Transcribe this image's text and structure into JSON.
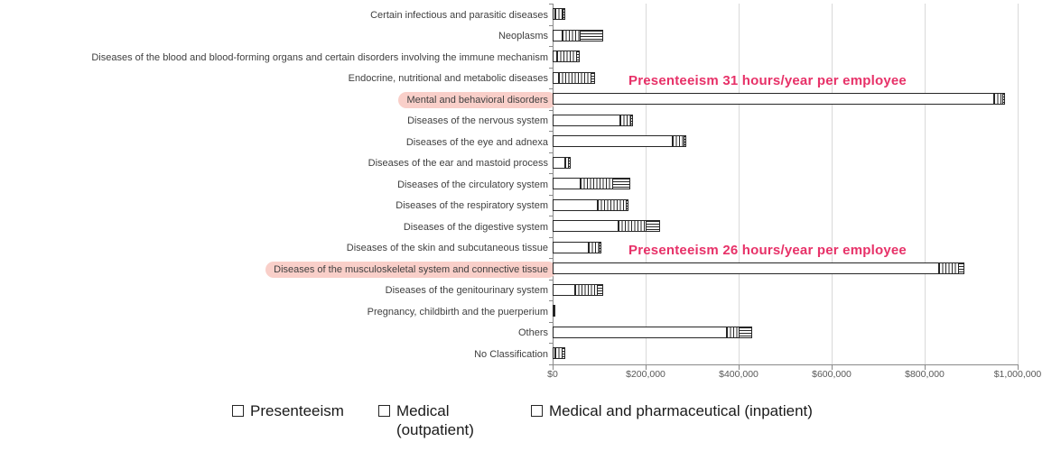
{
  "chart_data": {
    "type": "bar",
    "orientation": "horizontal",
    "stacked": true,
    "title": "",
    "xlabel": "",
    "ylabel": "",
    "x_ticks": [
      "$0",
      "$200,000",
      "$400,000",
      "$600,000",
      "$800,000",
      "$1,000,000"
    ],
    "xlim": [
      0,
      1000000
    ],
    "grid": "vertical",
    "legend_position": "bottom",
    "categories": [
      "Certain infectious and parasitic diseases",
      "Neoplasms",
      "Diseases of the blood and blood-forming organs and certain disorders involving the immune mechanism",
      "Endocrine, nutritional and metabolic diseases",
      "Mental and behavioral disorders",
      "Diseases of the nervous system",
      "Diseases of the eye and adnexa",
      "Diseases of the ear and mastoid process",
      "Diseases of the circulatory system",
      "Diseases of the respiratory system",
      "Diseases of the digestive system",
      "Diseases of the skin and subcutaneous tissue",
      "Diseases of the musculoskeletal system and connective tissue",
      "Diseases of the genitourinary system",
      "Pregnancy, childbirth and the puerperium",
      "Others",
      "No Classification"
    ],
    "highlighted_rows": [
      4,
      12
    ],
    "series": [
      {
        "name": "Presenteeism",
        "pattern": "solid-white",
        "values": [
          4000,
          21000,
          10000,
          14000,
          950000,
          146000,
          258000,
          27000,
          60000,
          97000,
          142000,
          78000,
          831000,
          49000,
          0,
          375000,
          3000
        ]
      },
      {
        "name": "Medical (outpatient)",
        "pattern": "vertical-stripes",
        "values": [
          20000,
          41000,
          45000,
          72000,
          20000,
          25000,
          28000,
          10000,
          72000,
          64000,
          62000,
          25000,
          45000,
          50000,
          6000,
          29000,
          18000
        ]
      },
      {
        "name": "Medical and pharmaceutical (inpatient)",
        "pattern": "horizontal-stripes",
        "values": [
          5000,
          50000,
          8000,
          10000,
          7000,
          6000,
          5000,
          6000,
          39000,
          4000,
          31000,
          4000,
          14000,
          14000,
          0,
          29000,
          8000
        ]
      }
    ],
    "annotations": [
      {
        "text": "Presenteeism 31 hours/year per employee",
        "row": 4
      },
      {
        "text": "Presenteeism 26 hours/year per employee",
        "row": 12
      }
    ]
  },
  "legend": {
    "items": [
      {
        "label": "Presenteeism",
        "pattern": "solid-white"
      },
      {
        "label": "Medical\n(outpatient)",
        "pattern": "vertical-stripes"
      },
      {
        "label": "Medical and pharmaceutical (inpatient)",
        "pattern": "horizontal-stripes"
      }
    ]
  },
  "colors": {
    "annotation_text": "#e73168",
    "highlight_pill": "#f9cfc9",
    "bar_border": "#262626",
    "gridline": "#d9d9d9",
    "axis_line": "#898989",
    "label_text": "#3f3f3f",
    "tick_text": "#595959"
  }
}
